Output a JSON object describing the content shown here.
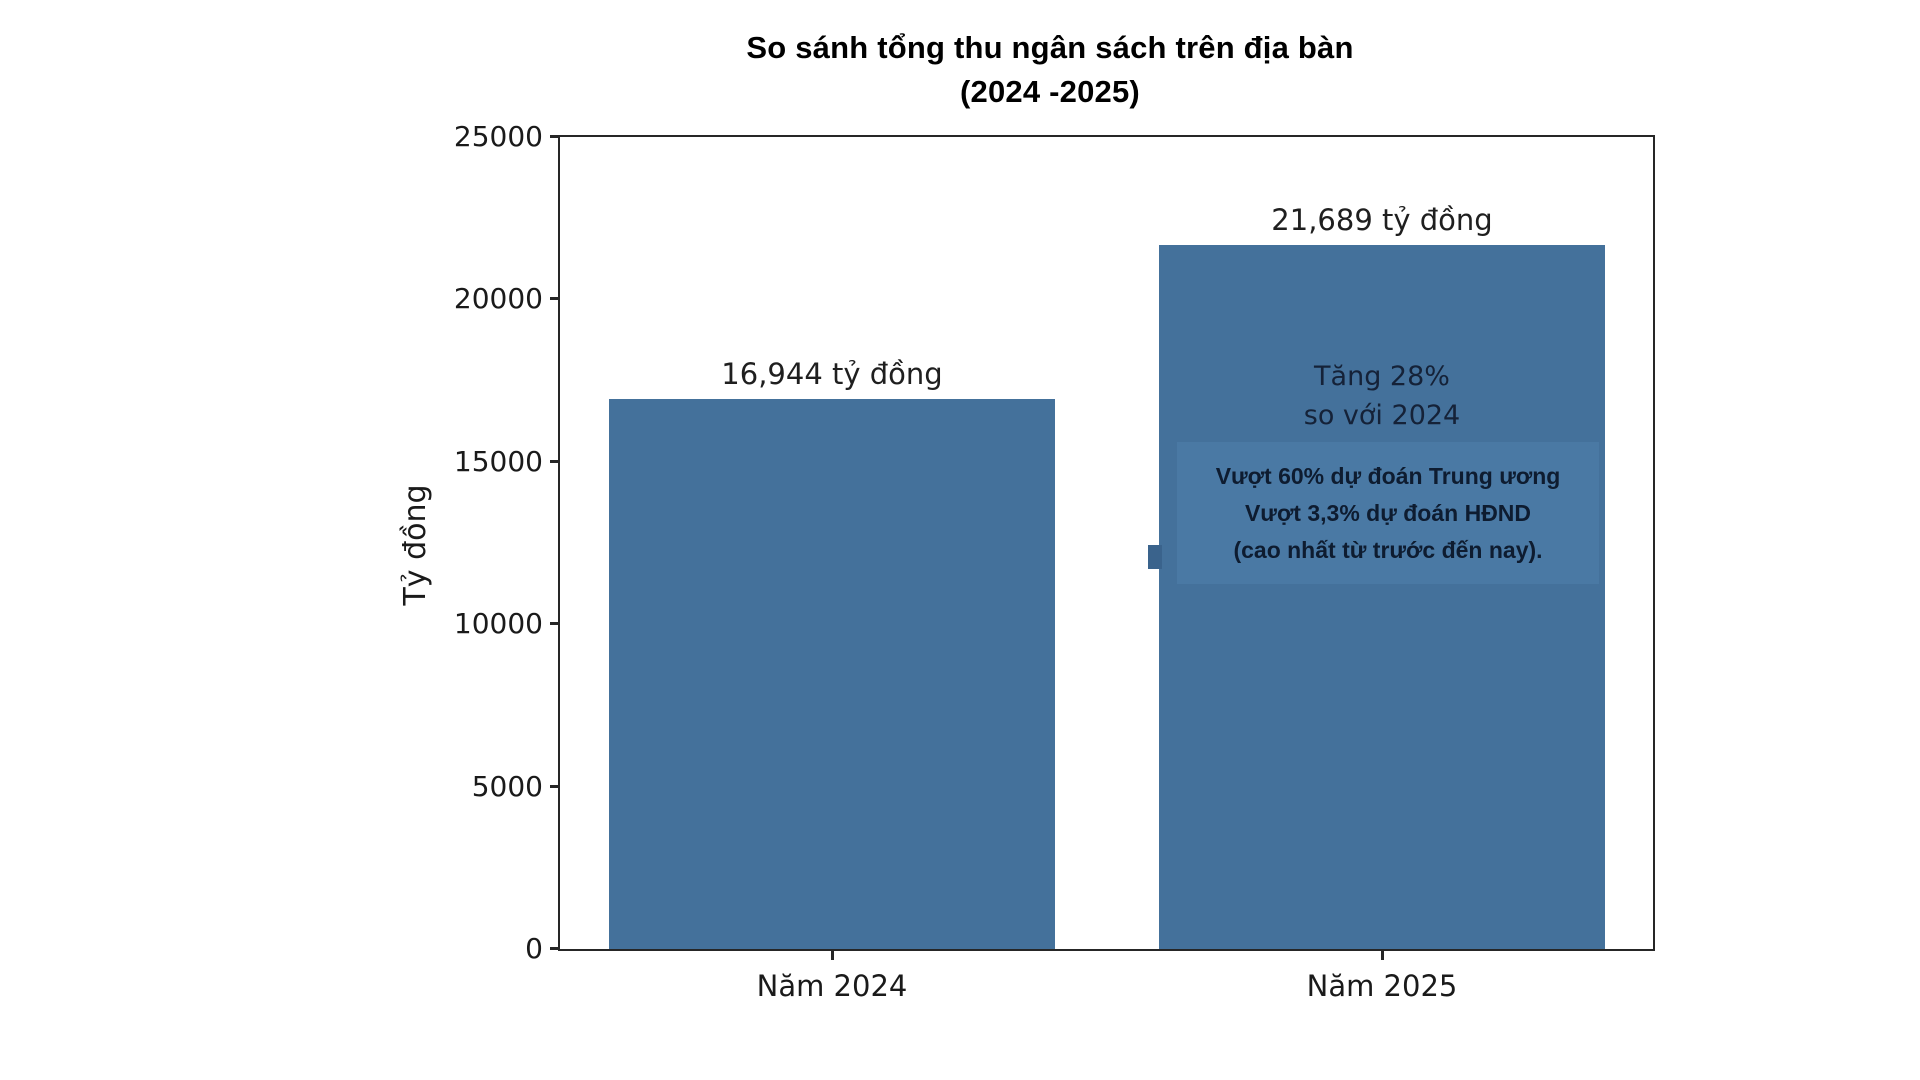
{
  "chart_data": {
    "type": "bar",
    "title": "So sánh tổng thu ngân sách trên địa bàn",
    "title_line2": "(2024 -2025)",
    "ylabel": "Tỷ đồng",
    "xlabel": "",
    "categories": [
      "Năm 2024",
      "Năm 2025"
    ],
    "values": [
      16944,
      21689
    ],
    "bar_value_labels": [
      "16,944 tỷ đồng",
      "21,689 tỷ đồng"
    ],
    "ylim": [
      0,
      25000
    ],
    "yticks": [
      0,
      5000,
      10000,
      15000,
      20000,
      25000
    ],
    "grid": false,
    "legend": "none",
    "colors": {
      "bar": "#44719B",
      "annotation_box": "#4A79A4",
      "annotation_text": "#0E1C30",
      "growth_note_text": "#152238",
      "spine": "#262626",
      "tick_text": "#1a1a1a",
      "title_text": "#000000",
      "background": "#ffffff"
    },
    "annotations": [
      {
        "name": "growth-note",
        "lines": [
          "Tăng 28%",
          "so với 2024"
        ]
      },
      {
        "name": "highlight-box",
        "lines": [
          "Vượt 60% dự đoán Trung ương",
          "Vượt 3,3% dự đoán HĐND",
          "(cao nhất từ trước đến nay)."
        ]
      }
    ]
  }
}
